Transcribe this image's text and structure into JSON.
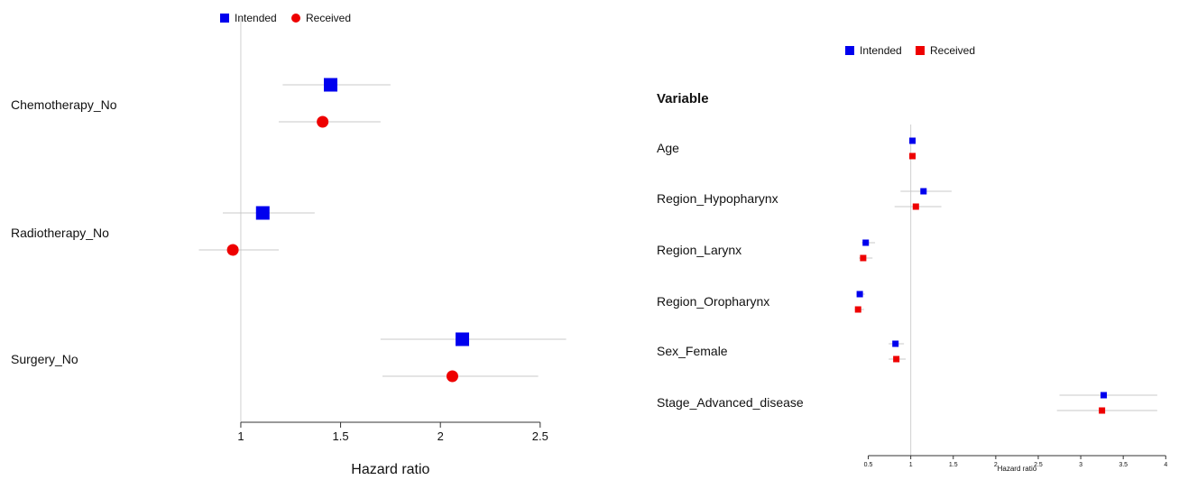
{
  "chart_data": [
    {
      "type": "forest",
      "legend": [
        {
          "name": "Intended",
          "color": "#0000ee",
          "marker": "square"
        },
        {
          "name": "Received",
          "color": "#ee0000",
          "marker": "circle"
        }
      ],
      "xlabel": "Hazard ratio",
      "xticks": [
        1,
        1.5,
        2,
        2.5
      ],
      "xlim": [
        0.72,
        2.65
      ],
      "reference_line": 1,
      "categories": [
        "Chemotherapy_No",
        "Radiotherapy_No",
        "Surgery_No"
      ],
      "series": [
        {
          "name": "Intended",
          "estimates": [
            1.45,
            1.11,
            2.11
          ],
          "ci_low": [
            1.21,
            0.91,
            1.7
          ],
          "ci_high": [
            1.75,
            1.37,
            2.63
          ]
        },
        {
          "name": "Received",
          "estimates": [
            1.41,
            0.96,
            2.06
          ],
          "ci_low": [
            1.19,
            0.79,
            1.71
          ],
          "ci_high": [
            1.7,
            1.19,
            2.49
          ]
        }
      ]
    },
    {
      "type": "forest",
      "legend": [
        {
          "name": "Intended",
          "color": "#0000ee",
          "marker": "square"
        },
        {
          "name": "Received",
          "color": "#ee0000",
          "marker": "square"
        }
      ],
      "column_header": "Variable",
      "xlabel": "Hazard ratio",
      "xticks": [
        0.5,
        1,
        1.5,
        2,
        2.5,
        3,
        3.5,
        4
      ],
      "xlim": [
        0.42,
        4.05
      ],
      "reference_line": 1,
      "categories": [
        "Age",
        "Region_Hypopharynx",
        "Region_Larynx",
        "Region_Oropharynx",
        "Sex_Female",
        "Stage_Advanced_disease"
      ],
      "series": [
        {
          "name": "Intended",
          "estimates": [
            1.02,
            1.15,
            0.47,
            0.4,
            0.82,
            3.27
          ],
          "ci_low": [
            1.01,
            0.88,
            0.42,
            0.36,
            0.74,
            2.75
          ],
          "ci_high": [
            1.03,
            1.48,
            0.58,
            0.46,
            0.92,
            3.9
          ]
        },
        {
          "name": "Received",
          "estimates": [
            1.02,
            1.06,
            0.44,
            0.38,
            0.83,
            3.25
          ],
          "ci_low": [
            1.01,
            0.81,
            0.39,
            0.34,
            0.74,
            2.72
          ],
          "ci_high": [
            1.03,
            1.36,
            0.55,
            0.45,
            0.94,
            3.9
          ]
        }
      ]
    }
  ]
}
